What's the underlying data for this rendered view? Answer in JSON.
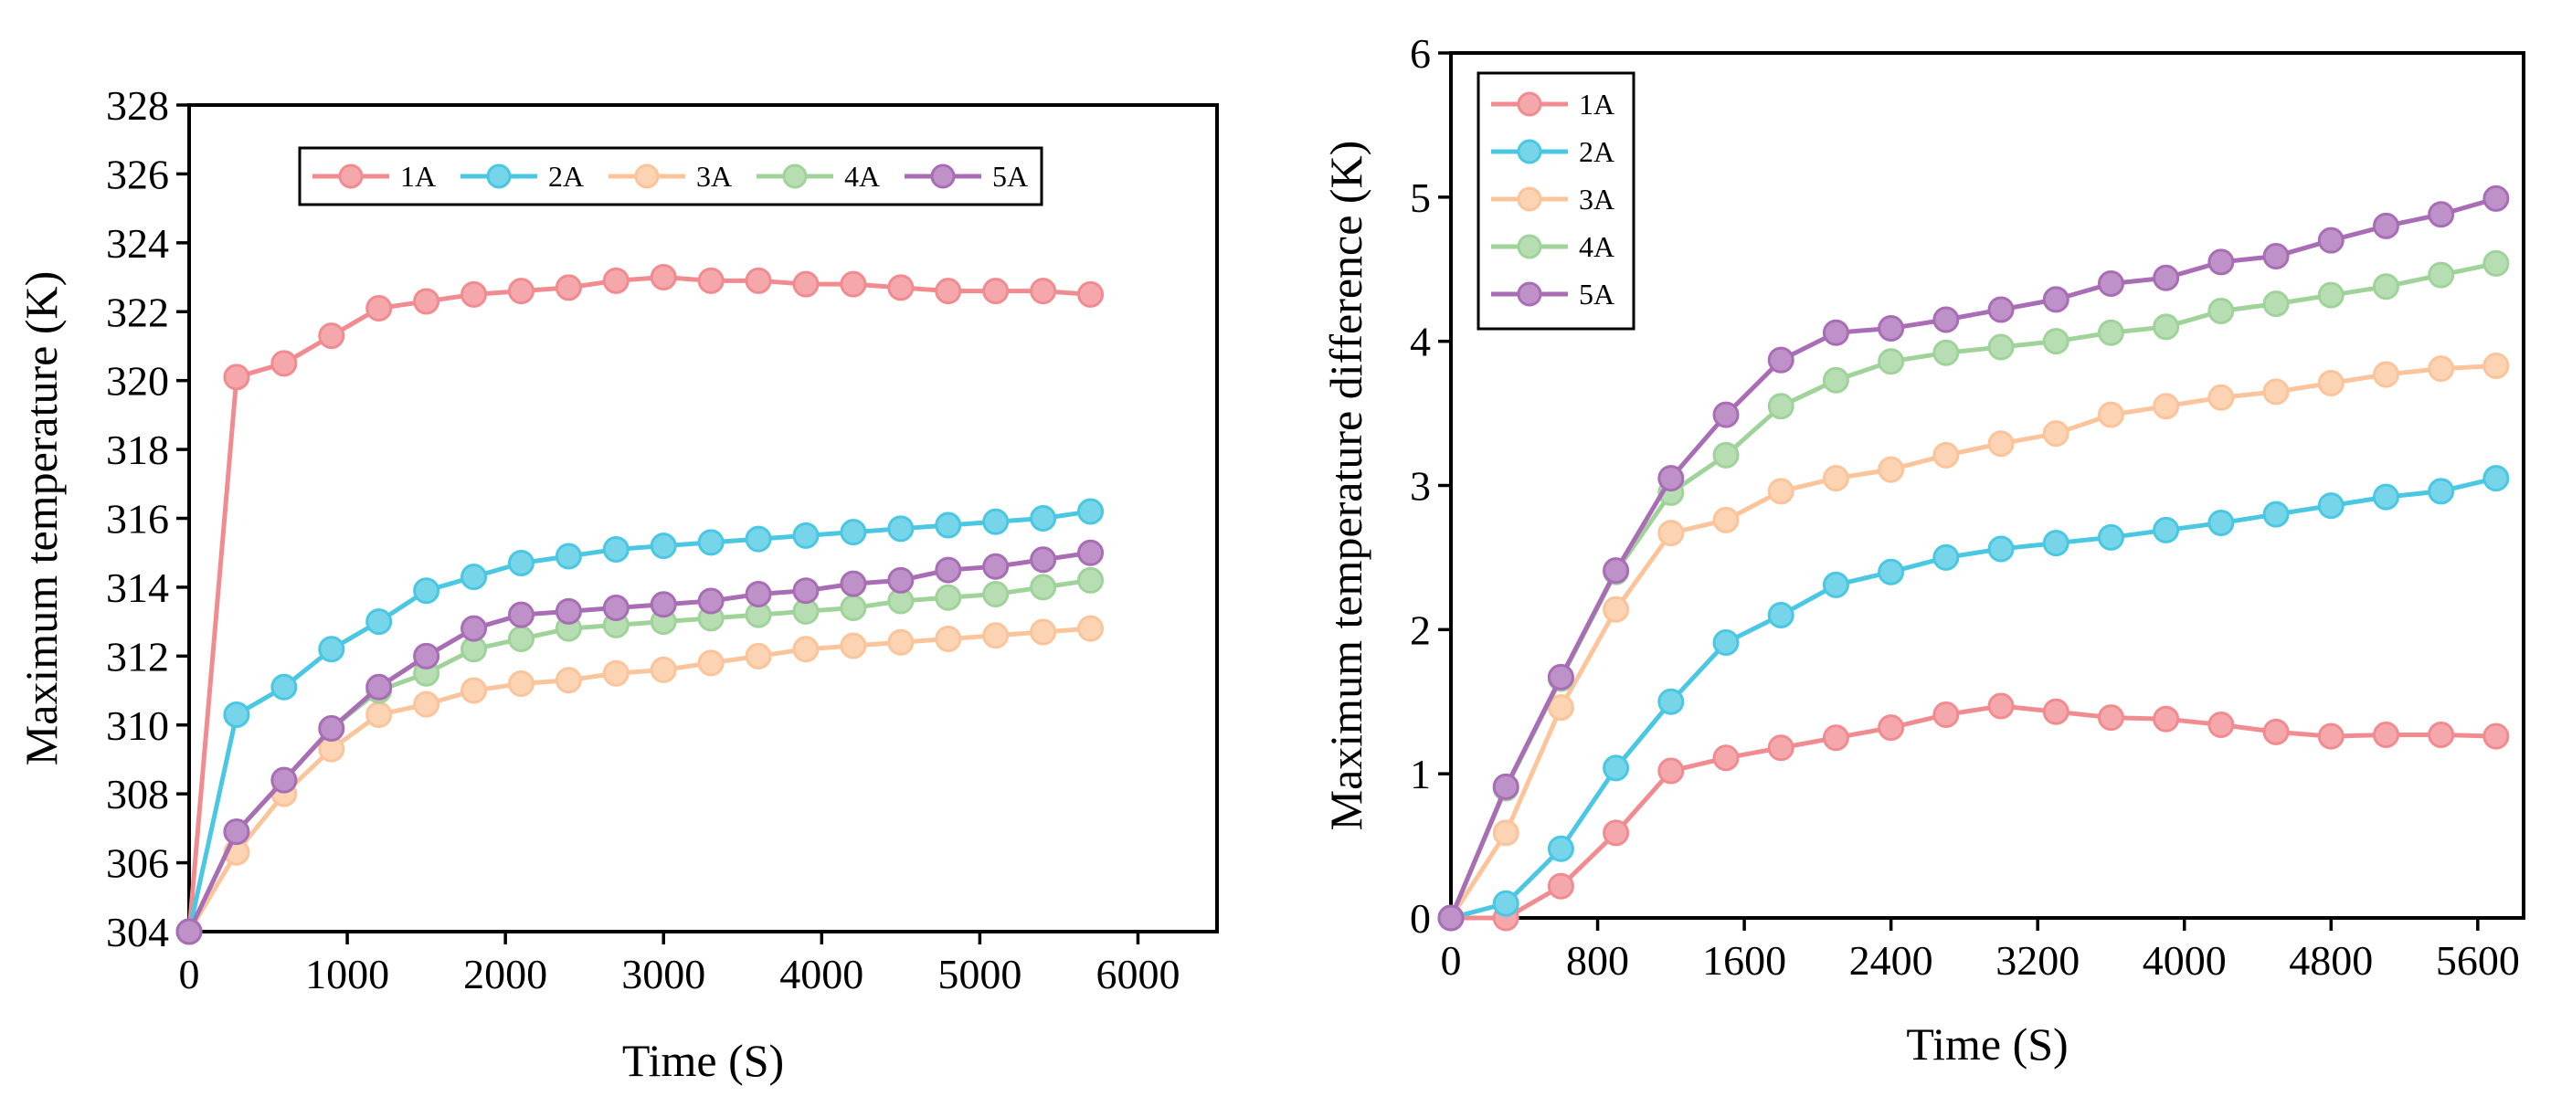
{
  "chart_data": [
    {
      "type": "line",
      "title": "",
      "xlabel": "Time (S)",
      "ylabel": "Maximum temperature (K)",
      "xlim": [
        0,
        6500
      ],
      "ylim": [
        304,
        328
      ],
      "xticks": [
        0,
        1000,
        2000,
        3000,
        4000,
        5000,
        6000
      ],
      "yticks": [
        304,
        306,
        308,
        310,
        312,
        314,
        316,
        318,
        320,
        322,
        324,
        326,
        328
      ],
      "legend_placement": "top",
      "legend_layout": "horizontal",
      "grid": false,
      "series": [
        {
          "name": "1A",
          "color": "#f28b8f",
          "x": [
            0,
            300,
            600,
            900,
            1200,
            1500,
            1800,
            2100,
            2400,
            2700,
            3000,
            3300,
            3600,
            3900,
            4200,
            4500,
            4800,
            5100,
            5400,
            5700
          ],
          "y": [
            304,
            320.1,
            320.5,
            321.3,
            322.1,
            322.3,
            322.5,
            322.6,
            322.7,
            322.9,
            323.0,
            322.9,
            322.9,
            322.8,
            322.8,
            322.7,
            322.6,
            322.6,
            322.6,
            322.5
          ]
        },
        {
          "name": "2A",
          "color": "#49c7e3",
          "x": [
            0,
            300,
            600,
            900,
            1200,
            1500,
            1800,
            2100,
            2400,
            2700,
            3000,
            3300,
            3600,
            3900,
            4200,
            4500,
            4800,
            5100,
            5400,
            5700
          ],
          "y": [
            304,
            310.3,
            311.1,
            312.2,
            313.0,
            313.9,
            314.3,
            314.7,
            314.9,
            315.1,
            315.2,
            315.3,
            315.4,
            315.5,
            315.6,
            315.7,
            315.8,
            315.9,
            316.0,
            316.2
          ]
        },
        {
          "name": "3A",
          "color": "#fbc49a",
          "x": [
            0,
            300,
            600,
            900,
            1200,
            1500,
            1800,
            2100,
            2400,
            2700,
            3000,
            3300,
            3600,
            3900,
            4200,
            4500,
            4800,
            5100,
            5400,
            5700
          ],
          "y": [
            304,
            306.3,
            308.0,
            309.3,
            310.3,
            310.6,
            311.0,
            311.2,
            311.3,
            311.5,
            311.6,
            311.8,
            312.0,
            312.2,
            312.3,
            312.4,
            312.5,
            312.6,
            312.7,
            312.8
          ]
        },
        {
          "name": "4A",
          "color": "#9fd39a",
          "x": [
            0,
            300,
            600,
            900,
            1200,
            1500,
            1800,
            2100,
            2400,
            2700,
            3000,
            3300,
            3600,
            3900,
            4200,
            4500,
            4800,
            5100,
            5400,
            5700
          ],
          "y": [
            304,
            306.9,
            308.4,
            309.9,
            311.0,
            311.5,
            312.2,
            312.5,
            312.8,
            312.9,
            313.0,
            313.1,
            313.2,
            313.3,
            313.4,
            313.6,
            313.7,
            313.8,
            314.0,
            314.2
          ]
        },
        {
          "name": "5A",
          "color": "#a86db5",
          "x": [
            0,
            300,
            600,
            900,
            1200,
            1500,
            1800,
            2100,
            2400,
            2700,
            3000,
            3300,
            3600,
            3900,
            4200,
            4500,
            4800,
            5100,
            5400,
            5700
          ],
          "y": [
            304,
            306.9,
            308.4,
            309.9,
            311.1,
            312.0,
            312.8,
            313.2,
            313.3,
            313.4,
            313.5,
            313.6,
            313.8,
            313.9,
            314.1,
            314.2,
            314.5,
            314.6,
            314.8,
            315.0
          ]
        }
      ]
    },
    {
      "type": "line",
      "title": "",
      "xlabel": "Time (S)",
      "ylabel": "Maximum temperature difference (K)",
      "xlim": [
        0,
        5850
      ],
      "ylim": [
        0,
        6
      ],
      "xticks": [
        0,
        800,
        1600,
        2400,
        3200,
        4000,
        4800,
        5600
      ],
      "yticks": [
        0,
        1,
        2,
        3,
        4,
        5,
        6
      ],
      "legend_placement": "top-left",
      "legend_layout": "vertical",
      "grid": false,
      "series": [
        {
          "name": "1A",
          "color": "#f28b8f",
          "x": [
            0,
            300,
            600,
            900,
            1200,
            1500,
            1800,
            2100,
            2400,
            2700,
            3000,
            3300,
            3600,
            3900,
            4200,
            4500,
            4800,
            5100,
            5400,
            5700
          ],
          "y": [
            0,
            0.0,
            0.22,
            0.59,
            1.02,
            1.11,
            1.18,
            1.25,
            1.32,
            1.41,
            1.47,
            1.43,
            1.39,
            1.38,
            1.34,
            1.29,
            1.26,
            1.27,
            1.27,
            1.26
          ]
        },
        {
          "name": "2A",
          "color": "#49c7e3",
          "x": [
            0,
            300,
            600,
            900,
            1200,
            1500,
            1800,
            2100,
            2400,
            2700,
            3000,
            3300,
            3600,
            3900,
            4200,
            4500,
            4800,
            5100,
            5400,
            5700
          ],
          "y": [
            0,
            0.1,
            0.48,
            1.04,
            1.5,
            1.91,
            2.1,
            2.31,
            2.4,
            2.5,
            2.56,
            2.6,
            2.64,
            2.69,
            2.74,
            2.8,
            2.86,
            2.92,
            2.96,
            3.05
          ]
        },
        {
          "name": "3A",
          "color": "#fbc49a",
          "x": [
            0,
            300,
            600,
            900,
            1200,
            1500,
            1800,
            2100,
            2400,
            2700,
            3000,
            3300,
            3600,
            3900,
            4200,
            4500,
            4800,
            5100,
            5400,
            5700
          ],
          "y": [
            0,
            0.59,
            1.46,
            2.14,
            2.67,
            2.76,
            2.96,
            3.05,
            3.11,
            3.21,
            3.29,
            3.36,
            3.49,
            3.55,
            3.61,
            3.65,
            3.71,
            3.77,
            3.81,
            3.83
          ]
        },
        {
          "name": "4A",
          "color": "#9fd39a",
          "x": [
            0,
            300,
            600,
            900,
            1200,
            1500,
            1800,
            2100,
            2400,
            2700,
            3000,
            3300,
            3600,
            3900,
            4200,
            4500,
            4800,
            5100,
            5400,
            5700
          ],
          "y": [
            0,
            0.9,
            1.66,
            2.4,
            2.95,
            3.21,
            3.55,
            3.73,
            3.86,
            3.92,
            3.96,
            4.0,
            4.06,
            4.1,
            4.21,
            4.26,
            4.32,
            4.38,
            4.46,
            4.54
          ]
        },
        {
          "name": "5A",
          "color": "#a86db5",
          "x": [
            0,
            300,
            600,
            900,
            1200,
            1500,
            1800,
            2100,
            2400,
            2700,
            3000,
            3300,
            3600,
            3900,
            4200,
            4500,
            4800,
            5100,
            5400,
            5700
          ],
          "y": [
            0,
            0.91,
            1.67,
            2.41,
            3.05,
            3.49,
            3.87,
            4.06,
            4.09,
            4.15,
            4.22,
            4.29,
            4.4,
            4.44,
            4.55,
            4.59,
            4.7,
            4.8,
            4.88,
            4.99
          ]
        }
      ]
    }
  ]
}
